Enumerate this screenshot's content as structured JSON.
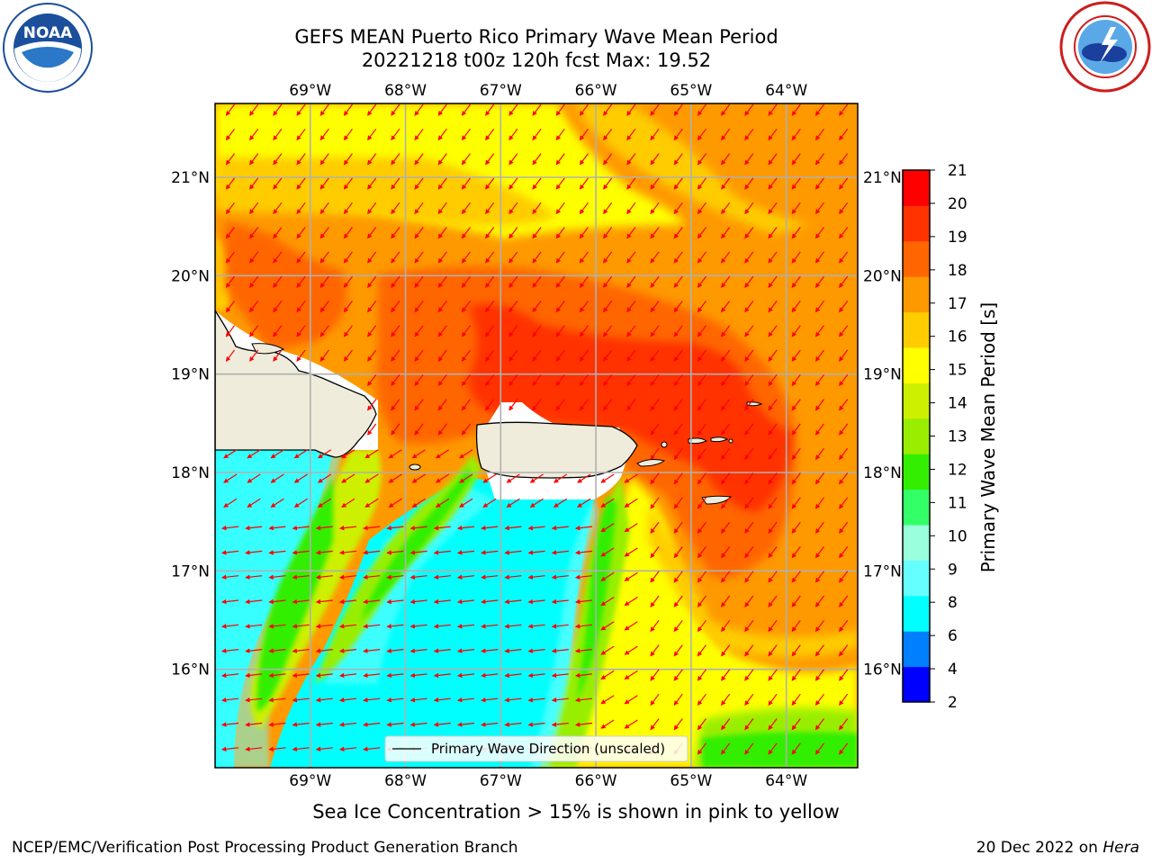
{
  "header": {
    "title_line1": "GEFS MEAN Puerto Rico Primary Wave Mean Period",
    "title_line2": "20221218 t00z 120h fcst   Max: 19.52"
  },
  "logos": {
    "left": {
      "name": "noaa-logo",
      "text": "NOAA",
      "color": "#1b4f9c"
    },
    "right": {
      "name": "nws-logo",
      "color": "#1b4f9c",
      "ring_color": "#cc1e1e"
    }
  },
  "map": {
    "lon_range": [
      -70.0,
      -63.25
    ],
    "lat_range": [
      15.0,
      21.75
    ],
    "lon_ticks": [
      {
        "value": -69,
        "label": "69°W"
      },
      {
        "value": -68,
        "label": "68°W"
      },
      {
        "value": -67,
        "label": "67°W"
      },
      {
        "value": -66,
        "label": "66°W"
      },
      {
        "value": -65,
        "label": "65°W"
      },
      {
        "value": -64,
        "label": "64°W"
      }
    ],
    "lat_ticks": [
      {
        "value": 21,
        "label": "21°N"
      },
      {
        "value": 20,
        "label": "20°N"
      },
      {
        "value": 19,
        "label": "19°N"
      },
      {
        "value": 18,
        "label": "18°N"
      },
      {
        "value": 17,
        "label": "17°N"
      },
      {
        "value": 16,
        "label": "16°N"
      }
    ],
    "grid": true,
    "legend": {
      "label": "Primary Wave Direction (unscaled)",
      "placement": "bottom-center"
    },
    "land_color": "#efecdc",
    "arrow_color": "#ff0000"
  },
  "colorbar": {
    "label": "Primary Wave Mean Period [s]",
    "levels": [
      {
        "value": 2,
        "label": "2"
      },
      {
        "value": 4,
        "label": "4"
      },
      {
        "value": 6,
        "label": "6"
      },
      {
        "value": 8,
        "label": "8"
      },
      {
        "value": 9,
        "label": "9"
      },
      {
        "value": 10,
        "label": "10"
      },
      {
        "value": 11,
        "label": "11"
      },
      {
        "value": 12,
        "label": "12"
      },
      {
        "value": 13,
        "label": "13"
      },
      {
        "value": 14,
        "label": "14"
      },
      {
        "value": 15,
        "label": "15"
      },
      {
        "value": 16,
        "label": "16"
      },
      {
        "value": 17,
        "label": "17"
      },
      {
        "value": 18,
        "label": "18"
      },
      {
        "value": 19,
        "label": "19"
      },
      {
        "value": 20,
        "label": "20"
      },
      {
        "value": 21,
        "label": "21"
      }
    ],
    "colors": [
      "#0000ff",
      "#0080ff",
      "#00ffff",
      "#66ffff",
      "#99ffdd",
      "#33ff66",
      "#33ee00",
      "#99ee00",
      "#ccf000",
      "#ffff00",
      "#ffcc00",
      "#ff9900",
      "#ff6600",
      "#ff3300",
      "#ff0000"
    ]
  },
  "caption": "Sea Ice Concentration > 15% is shown in pink to yellow",
  "footer": {
    "left": "NCEP/EMC/Verification Post Processing Product Generation Branch",
    "right_date": "20 Dec 2022 on ",
    "right_machine": "Hera"
  }
}
